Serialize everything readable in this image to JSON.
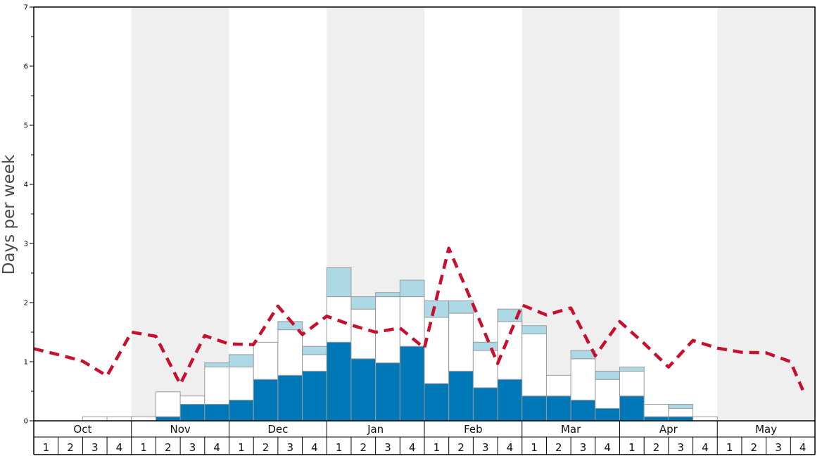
{
  "chart_data": {
    "type": "bar",
    "ylabel": "Days per week",
    "ylim": [
      0,
      7
    ],
    "y_major_ticks": [
      "0",
      "1",
      "2",
      "3",
      "4",
      "5",
      "6",
      "7"
    ],
    "months": [
      "Oct",
      "Nov",
      "Dec",
      "Jan",
      "Feb",
      "Mar",
      "Apr",
      "May"
    ],
    "week_labels": [
      "1",
      "2",
      "3",
      "4"
    ],
    "colors": {
      "series_bottom": "#0077b6",
      "series_middle": "#ffffff",
      "series_top": "#add8e6",
      "line": "#c8102e",
      "band": "#efefef"
    },
    "series": [
      {
        "values": [
          0,
          0,
          0,
          0,
          0,
          0.07,
          0.28,
          0.28,
          0.35,
          0.7,
          0.77,
          0.84,
          1.33,
          1.05,
          0.98,
          1.26,
          0.63,
          0.84,
          0.56,
          0.7,
          0.42,
          0.42,
          0.35,
          0.21,
          0.42,
          0.07,
          0.07,
          0,
          0,
          0,
          0,
          0
        ]
      },
      {
        "values": [
          0,
          0,
          0.07,
          0.07,
          0.07,
          0.42,
          0.14,
          0.63,
          0.56,
          0.63,
          0.77,
          0.28,
          0.77,
          0.84,
          1.12,
          0.84,
          1.12,
          0.98,
          0.63,
          0.98,
          1.05,
          0.35,
          0.7,
          0.49,
          0.42,
          0.21,
          0.14,
          0.07,
          0,
          0,
          0,
          0
        ]
      },
      {
        "values": [
          0,
          0,
          0,
          0,
          0,
          0,
          0,
          0.07,
          0.21,
          0,
          0.14,
          0.14,
          0.49,
          0.21,
          0.07,
          0.28,
          0.28,
          0.21,
          0.14,
          0.21,
          0.14,
          0,
          0.14,
          0.14,
          0.07,
          0,
          0.07,
          0,
          0,
          0,
          0,
          0
        ]
      },
      {
        "values": [
          1.22,
          1.12,
          1.01,
          0.76,
          1.5,
          1.43,
          0.62,
          1.44,
          1.3,
          1.29,
          1.94,
          1.46,
          1.77,
          1.62,
          1.5,
          1.57,
          1.23,
          2.92,
          1.96,
          0.97,
          1.96,
          1.79,
          1.91,
          1.1,
          1.68,
          1.31,
          0.91,
          1.36,
          1.23,
          1.16,
          1.15,
          1.0
        ]
      }
    ],
    "extra_points": [
      {
        "x_after_last_week": 0.5,
        "y": 0.52
      }
    ]
  }
}
